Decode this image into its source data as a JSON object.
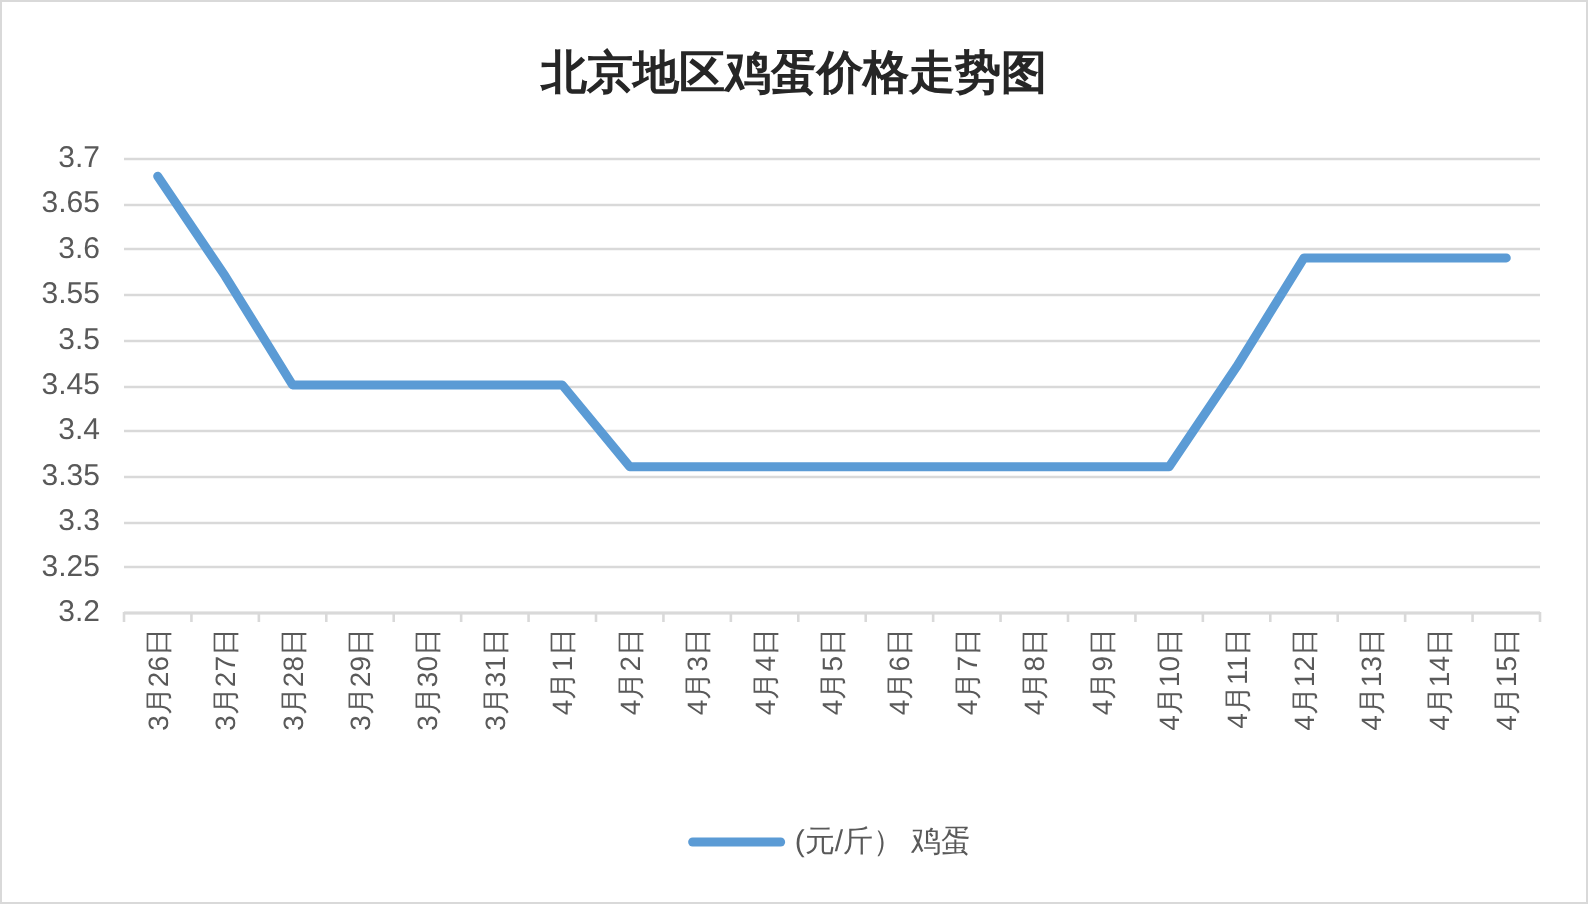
{
  "chart_data": {
    "type": "line",
    "title": "北京地区鸡蛋价格走势图",
    "categories": [
      "3月26日",
      "3月27日",
      "3月28日",
      "3月29日",
      "3月30日",
      "3月31日",
      "4月1日",
      "4月2日",
      "4月3日",
      "4月4日",
      "4月5日",
      "4月6日",
      "4月7日",
      "4月8日",
      "4月9日",
      "4月10日",
      "4月11日",
      "4月12日",
      "4月13日",
      "4月14日",
      "4月15日"
    ],
    "series": [
      {
        "name": "(元/斤） 鸡蛋",
        "color": "#5b9bd5",
        "values": [
          3.68,
          3.57,
          3.45,
          3.45,
          3.45,
          3.45,
          3.45,
          3.36,
          3.36,
          3.36,
          3.36,
          3.36,
          3.36,
          3.36,
          3.36,
          3.36,
          3.47,
          3.59,
          3.59,
          3.59,
          3.59
        ]
      }
    ],
    "ylim": [
      3.2,
      3.7
    ],
    "yticks": [
      3.2,
      3.25,
      3.3,
      3.35,
      3.4,
      3.45,
      3.5,
      3.55,
      3.6,
      3.65,
      3.7
    ],
    "grid": "y",
    "legend": "bottom",
    "line_style": "solid"
  }
}
